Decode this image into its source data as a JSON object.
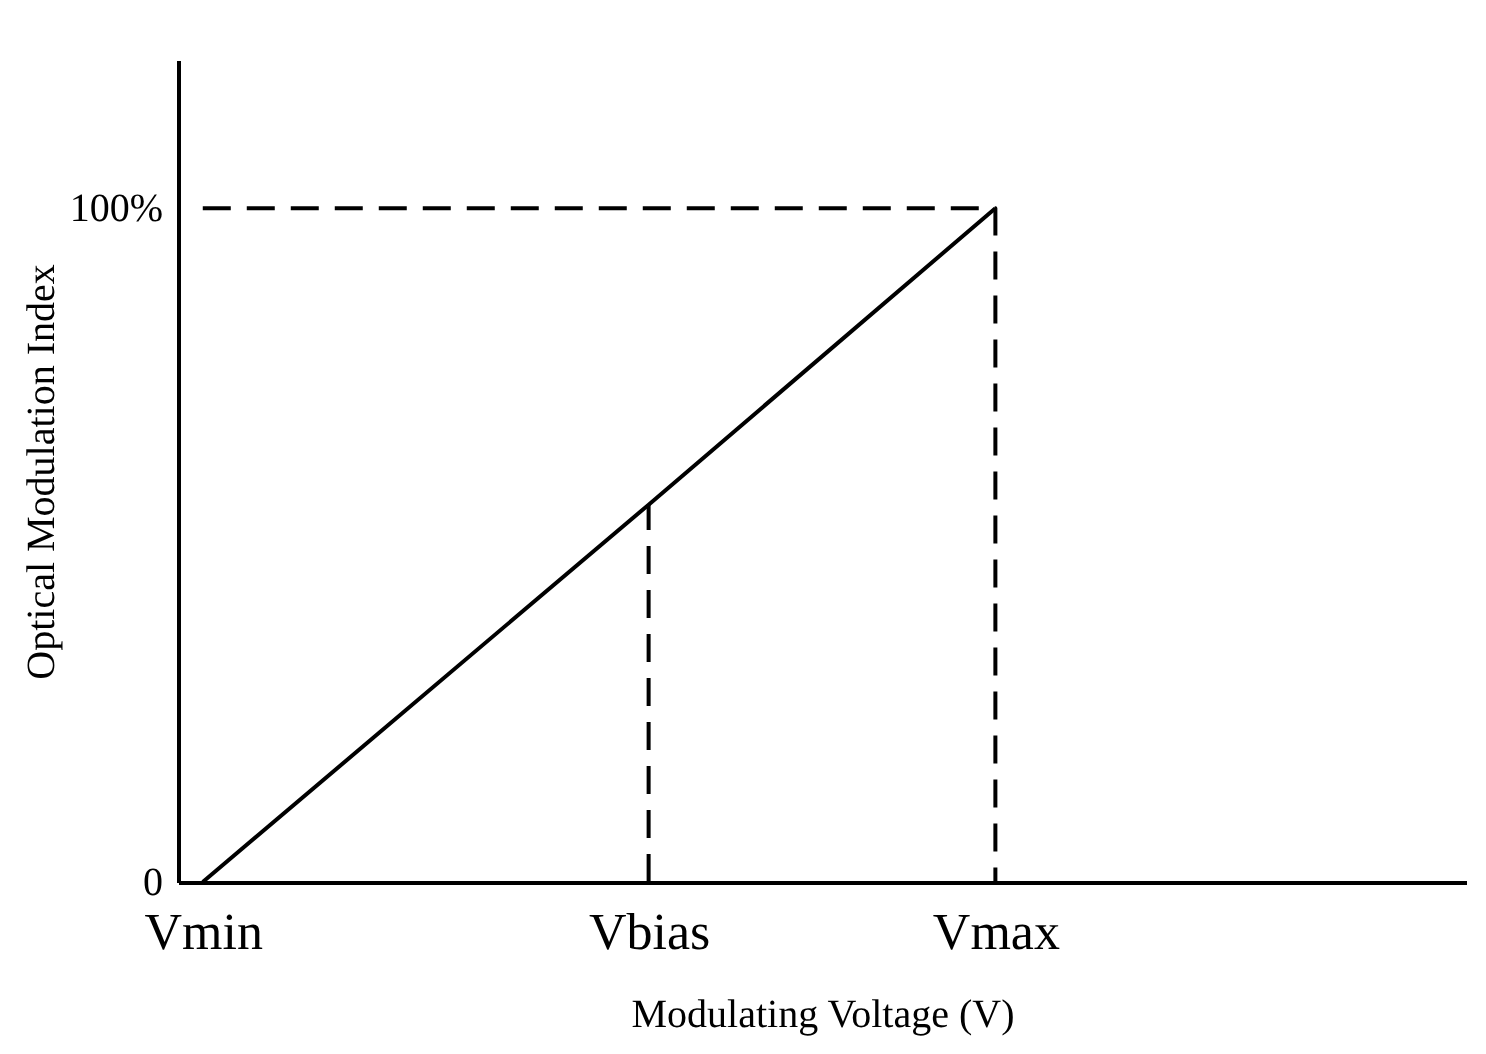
{
  "chart_data": {
    "type": "line",
    "xlabel": "Modulating Voltage (V)",
    "ylabel": "Optical Modulation Index",
    "categories": [
      "Vmin",
      null,
      null,
      null,
      null,
      null,
      null,
      null,
      null,
      "Vbias",
      null,
      null,
      null,
      null,
      null,
      null,
      "Vmax",
      null,
      null,
      null,
      null,
      null,
      null,
      null,
      null,
      null
    ],
    "ylim": [
      0,
      122
    ],
    "yticks": [
      {
        "value": 0,
        "label": "0"
      },
      {
        "value": 100,
        "label": "100%"
      }
    ],
    "grid": false,
    "marker": "none",
    "series": [
      {
        "x": [
          "Vmin",
          "Vbias",
          "Vmax"
        ],
        "values": [
          0,
          56,
          100
        ],
        "color": "#000000",
        "line_style": "solid"
      },
      {
        "x": [
          "Vmin",
          "Vmax",
          "Vmax"
        ],
        "values": [
          100,
          100,
          0
        ],
        "color": "#000000",
        "line_style": "dashed"
      },
      {
        "x": [
          "Vbias",
          "Vbias"
        ],
        "values": [
          0,
          56
        ],
        "color": "#000000",
        "line_style": "dashed"
      }
    ]
  }
}
